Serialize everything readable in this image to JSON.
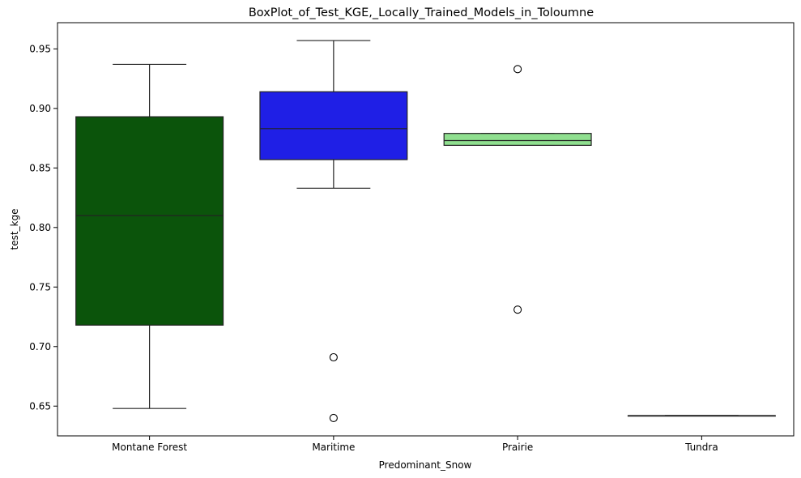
{
  "chart_data": {
    "type": "box",
    "title": "BoxPlot_of_Test_KGE,_Locally_Trained_Models_in_Toloumne",
    "xlabel": "Predominant_Snow",
    "ylabel": "test_kge",
    "ylim": [
      0.625,
      0.972
    ],
    "yticks": [
      "0.65",
      "0.70",
      "0.75",
      "0.80",
      "0.85",
      "0.90",
      "0.95"
    ],
    "grid": false,
    "categories": [
      "Montane Forest",
      "Maritime",
      "Prairie",
      "Tundra"
    ],
    "boxes": [
      {
        "category": "Montane Forest",
        "color": "#0b540b",
        "whisker_low": 0.648,
        "q1": 0.718,
        "median": 0.81,
        "q3": 0.893,
        "whisker_high": 0.937,
        "outliers": []
      },
      {
        "category": "Maritime",
        "color": "#1f1fe6",
        "whisker_low": 0.833,
        "q1": 0.857,
        "median": 0.883,
        "q3": 0.914,
        "whisker_high": 0.957,
        "outliers": [
          0.691,
          0.64
        ]
      },
      {
        "category": "Prairie",
        "color": "#8fdf8f",
        "whisker_low": 0.869,
        "q1": 0.869,
        "median": 0.873,
        "q3": 0.879,
        "whisker_high": 0.879,
        "outliers": [
          0.933,
          0.731
        ]
      },
      {
        "category": "Tundra",
        "color": "#3a3aff",
        "whisker_low": 0.642,
        "q1": 0.642,
        "median": 0.642,
        "q3": 0.642,
        "whisker_high": 0.642,
        "outliers": []
      }
    ]
  }
}
